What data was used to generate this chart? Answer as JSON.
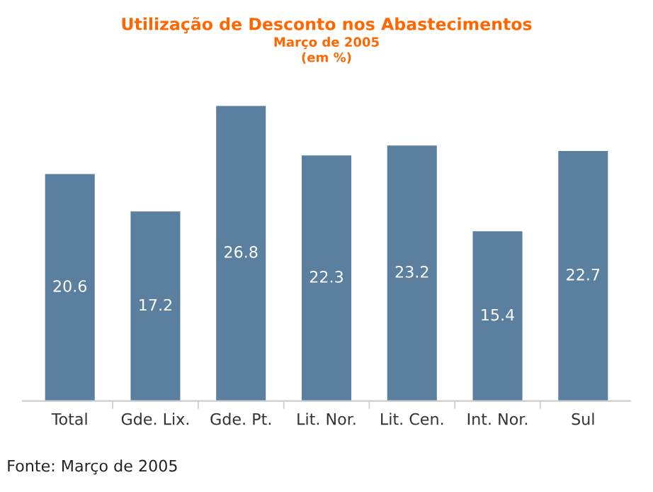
{
  "chart_data": {
    "type": "bar",
    "title": "Utilização de Desconto nos Abastecimentos",
    "subtitle": "Março de 2005\n(em %)",
    "categories": [
      "Total",
      "Gde. Lix.",
      "Gde. Pt.",
      "Lit. Nor.",
      "Lit. Cen.",
      "Int. Nor.",
      "Sul"
    ],
    "values": [
      20.6,
      17.2,
      26.8,
      22.3,
      23.2,
      15.4,
      22.7
    ],
    "color": "#5b7f9f",
    "data_labels": true,
    "grid": false,
    "annotations": [
      "Fonte: Março de 2005"
    ]
  }
}
